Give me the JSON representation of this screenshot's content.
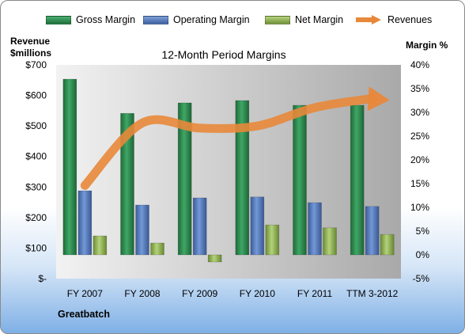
{
  "chart_data": {
    "type": "bar",
    "title": "12-Month Period Margins",
    "categories": [
      "FY 2007",
      "FY 2008",
      "FY 2009",
      "FY 2010",
      "FY 2011",
      "TTM 3-2012"
    ],
    "series": [
      {
        "name": "Gross Margin",
        "axis": "right",
        "values": [
          37.0,
          29.8,
          32.0,
          32.5,
          31.5,
          31.5
        ],
        "color": "#2e8b4e"
      },
      {
        "name": "Operating Margin",
        "axis": "right",
        "values": [
          13.5,
          10.5,
          12.0,
          12.2,
          11.0,
          10.2
        ],
        "color": "#5b7fc0"
      },
      {
        "name": "Net Margin",
        "axis": "right",
        "values": [
          4.0,
          2.5,
          -1.5,
          6.3,
          5.7,
          4.3
        ],
        "color": "#98bb5e"
      },
      {
        "name": "Revenues",
        "axis": "left",
        "type": "line",
        "values": [
          305,
          510,
          493,
          500,
          560,
          590
        ],
        "color": "#e8883a"
      }
    ],
    "y_left": {
      "label": "Revenue $millions",
      "ylim": [
        0,
        700
      ],
      "ticks": [
        "$-",
        "$100",
        "$200",
        "$300",
        "$400",
        "$500",
        "$600",
        "$700"
      ]
    },
    "y_right": {
      "label": "Margin %",
      "ylim": [
        -5,
        40
      ],
      "ticks": [
        "-5%",
        "0%",
        "5%",
        "10%",
        "15%",
        "20%",
        "25%",
        "30%",
        "35%",
        "40%"
      ]
    },
    "grid": false,
    "legend_position": "top"
  },
  "legend": {
    "gross": "Gross Margin",
    "operating": "Operating Margin",
    "net": "Net Margin",
    "revenues": "Revenues"
  },
  "axis_titles": {
    "left_line1": "Revenue",
    "left_line2": "$millions",
    "right": "Margin %"
  },
  "company": "Greatbatch"
}
